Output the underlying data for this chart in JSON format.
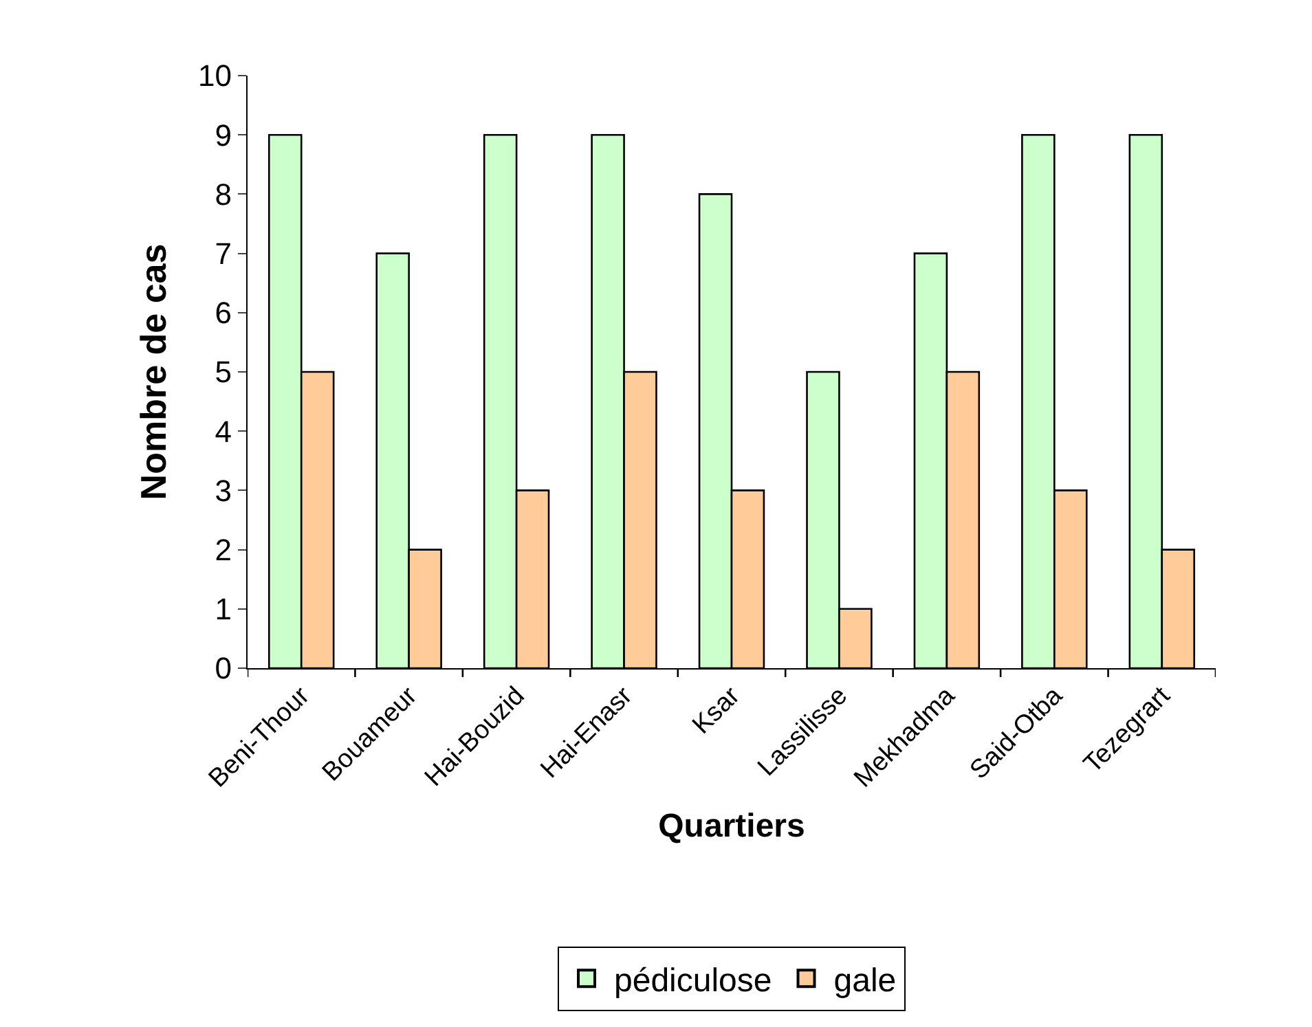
{
  "chart_data": {
    "type": "bar",
    "xlabel": "Quartiers",
    "ylabel": "Nombre de cas",
    "categories": [
      "Beni-Thour",
      "Bouameur",
      "Hai-Bouzid",
      "Hai-Enasr",
      "Ksar",
      "Lassilisse",
      "Mekhadma",
      "Said-Otba",
      "Tezegrart"
    ],
    "series": [
      {
        "name": "pédiculose",
        "color": "#ccffcc",
        "values": [
          9,
          7,
          9,
          9,
          8,
          5,
          7,
          9,
          9
        ]
      },
      {
        "name": "gale",
        "color": "#ffcc99",
        "values": [
          5,
          2,
          3,
          5,
          3,
          1,
          5,
          3,
          2
        ]
      }
    ],
    "ylim": [
      0,
      10
    ],
    "yticks": [
      0,
      1,
      2,
      3,
      4,
      5,
      6,
      7,
      8,
      9,
      10
    ],
    "grid": false,
    "legend": "bottom"
  }
}
